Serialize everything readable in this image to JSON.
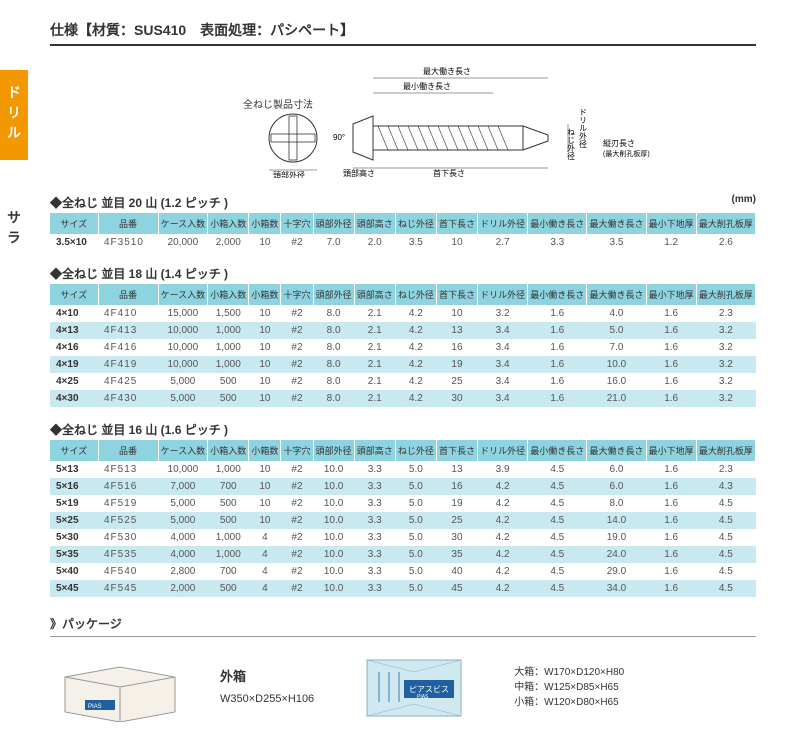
{
  "spec_header": "仕様【材質：SUS410　表面処理：パシペート】",
  "vtab": "ドリル",
  "vlabel": "サラ",
  "diagram": {
    "title": "全ねじ製品寸法",
    "labels": {
      "max_work": "最大働き長さ",
      "min_work": "最小働き長さ",
      "head_dia": "頭部外径",
      "head_h": "頭部高さ",
      "neck_len": "首下長さ",
      "angle": "90°",
      "thread_dia": "ねじ外径",
      "drill_dia": "ドリル外径",
      "taper": "縦刃長さ",
      "taper_note": "(最大削孔板厚)"
    }
  },
  "unit": "(mm)",
  "headers": [
    "サイズ",
    "品番",
    "ケース入数",
    "小箱入数",
    "小箱数",
    "十字穴",
    "頭部外径",
    "頭部高さ",
    "ねじ外径",
    "首下長さ",
    "ドリル外径",
    "最小働き長さ",
    "最大働き長さ",
    "最小下地厚",
    "最大削孔板厚"
  ],
  "t20": {
    "title": "◆全ねじ 並目 20 山 (1.2 ピッチ )",
    "rows": [
      [
        "3.5×10",
        "4F3510",
        "20,000",
        "2,000",
        "10",
        "#2",
        "7.0",
        "2.0",
        "3.5",
        "10",
        "2.7",
        "3.3",
        "3.5",
        "1.2",
        "2.6"
      ]
    ]
  },
  "t18": {
    "title": "◆全ねじ 並目 18 山 (1.4 ピッチ )",
    "rows": [
      [
        "4×10",
        "4F410",
        "15,000",
        "1,500",
        "10",
        "#2",
        "8.0",
        "2.1",
        "4.2",
        "10",
        "3.2",
        "1.6",
        "4.0",
        "1.6",
        "2.3"
      ],
      [
        "4×13",
        "4F413",
        "10,000",
        "1,000",
        "10",
        "#2",
        "8.0",
        "2.1",
        "4.2",
        "13",
        "3.4",
        "1.6",
        "5.0",
        "1.6",
        "3.2"
      ],
      [
        "4×16",
        "4F416",
        "10,000",
        "1,000",
        "10",
        "#2",
        "8.0",
        "2.1",
        "4.2",
        "16",
        "3.4",
        "1.6",
        "7.0",
        "1.6",
        "3.2"
      ],
      [
        "4×19",
        "4F419",
        "10,000",
        "1,000",
        "10",
        "#2",
        "8.0",
        "2.1",
        "4.2",
        "19",
        "3.4",
        "1.6",
        "10.0",
        "1.6",
        "3.2"
      ],
      [
        "4×25",
        "4F425",
        "5,000",
        "500",
        "10",
        "#2",
        "8.0",
        "2.1",
        "4.2",
        "25",
        "3.4",
        "1.6",
        "16.0",
        "1.6",
        "3.2"
      ],
      [
        "4×30",
        "4F430",
        "5,000",
        "500",
        "10",
        "#2",
        "8.0",
        "2.1",
        "4.2",
        "30",
        "3.4",
        "1.6",
        "21.0",
        "1.6",
        "3.2"
      ]
    ]
  },
  "t16": {
    "title": "◆全ねじ 並目 16 山 (1.6 ピッチ )",
    "rows": [
      [
        "5×13",
        "4F513",
        "10,000",
        "1,000",
        "10",
        "#2",
        "10.0",
        "3.3",
        "5.0",
        "13",
        "3.9",
        "4.5",
        "6.0",
        "1.6",
        "2.3"
      ],
      [
        "5×16",
        "4F516",
        "7,000",
        "700",
        "10",
        "#2",
        "10.0",
        "3.3",
        "5.0",
        "16",
        "4.2",
        "4.5",
        "6.0",
        "1.6",
        "4.3"
      ],
      [
        "5×19",
        "4F519",
        "5,000",
        "500",
        "10",
        "#2",
        "10.0",
        "3.3",
        "5.0",
        "19",
        "4.2",
        "4.5",
        "8.0",
        "1.6",
        "4.5"
      ],
      [
        "5×25",
        "4F525",
        "5,000",
        "500",
        "10",
        "#2",
        "10.0",
        "3.3",
        "5.0",
        "25",
        "4.2",
        "4.5",
        "14.0",
        "1.6",
        "4.5"
      ],
      [
        "5×30",
        "4F530",
        "4,000",
        "1,000",
        "4",
        "#2",
        "10.0",
        "3.3",
        "5.0",
        "30",
        "4.2",
        "4.5",
        "19.0",
        "1.6",
        "4.5"
      ],
      [
        "5×35",
        "4F535",
        "4,000",
        "1,000",
        "4",
        "#2",
        "10.0",
        "3.3",
        "5.0",
        "35",
        "4.2",
        "4.5",
        "24.0",
        "1.6",
        "4.5"
      ],
      [
        "5×40",
        "4F540",
        "2,800",
        "700",
        "4",
        "#2",
        "10.0",
        "3.3",
        "5.0",
        "40",
        "4.2",
        "4.5",
        "29.0",
        "1.6",
        "4.5"
      ],
      [
        "5×45",
        "4F545",
        "2,000",
        "500",
        "4",
        "#2",
        "10.0",
        "3.3",
        "5.0",
        "45",
        "4.2",
        "4.5",
        "34.0",
        "1.6",
        "4.5"
      ]
    ]
  },
  "package": {
    "title": "》パッケージ",
    "outer_label": "外箱",
    "outer_dim": "W350×D255×H106",
    "bag_label": "ピアスビス",
    "bag_sub": "PIAS",
    "sizes": [
      "大箱：W170×D120×H80",
      "中箱：W125×D85×H65",
      "小箱：W120×D80×H65"
    ]
  },
  "colors": {
    "orange": "#f39800",
    "header_bg": "#8dd3e0",
    "row_alt": "#c9e9f0",
    "text": "#333333",
    "cell_text": "#555555"
  }
}
